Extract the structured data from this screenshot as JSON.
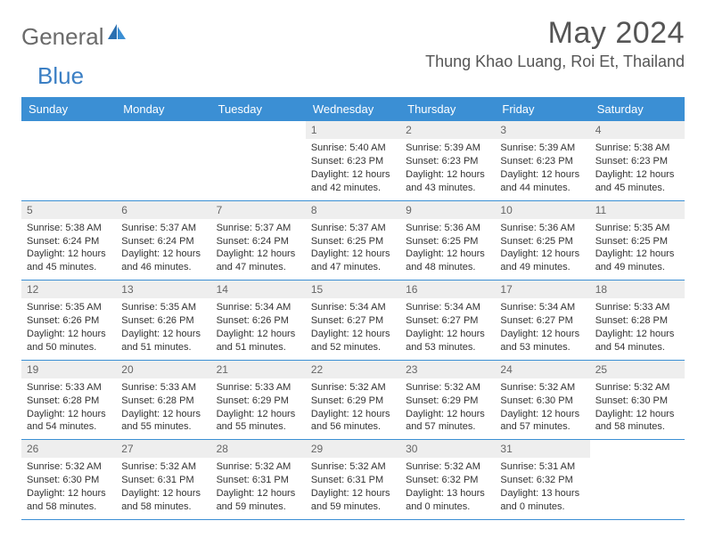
{
  "logo": {
    "general": "General",
    "blue": "Blue"
  },
  "title": "May 2024",
  "location": "Thung Khao Luang, Roi Et, Thailand",
  "colors": {
    "header_bg": "#3b8fd4",
    "header_text": "#ffffff",
    "daynum_bg": "#eeeeee",
    "daynum_text": "#666666",
    "body_text": "#333333",
    "title_text": "#555555",
    "logo_gray": "#6b6b6b",
    "logo_blue": "#3b7fc4",
    "row_border": "#3b8fd4",
    "page_bg": "#ffffff"
  },
  "typography": {
    "title_fontsize": 34,
    "location_fontsize": 18,
    "dayheader_fontsize": 13,
    "daynum_fontsize": 12,
    "body_fontsize": 11,
    "logo_fontsize": 26
  },
  "day_headers": [
    "Sunday",
    "Monday",
    "Tuesday",
    "Wednesday",
    "Thursday",
    "Friday",
    "Saturday"
  ],
  "weeks": [
    [
      {
        "blank": true
      },
      {
        "blank": true
      },
      {
        "blank": true
      },
      {
        "n": "1",
        "sunrise": "Sunrise: 5:40 AM",
        "sunset": "Sunset: 6:23 PM",
        "daylight": "Daylight: 12 hours and 42 minutes."
      },
      {
        "n": "2",
        "sunrise": "Sunrise: 5:39 AM",
        "sunset": "Sunset: 6:23 PM",
        "daylight": "Daylight: 12 hours and 43 minutes."
      },
      {
        "n": "3",
        "sunrise": "Sunrise: 5:39 AM",
        "sunset": "Sunset: 6:23 PM",
        "daylight": "Daylight: 12 hours and 44 minutes."
      },
      {
        "n": "4",
        "sunrise": "Sunrise: 5:38 AM",
        "sunset": "Sunset: 6:23 PM",
        "daylight": "Daylight: 12 hours and 45 minutes."
      }
    ],
    [
      {
        "n": "5",
        "sunrise": "Sunrise: 5:38 AM",
        "sunset": "Sunset: 6:24 PM",
        "daylight": "Daylight: 12 hours and 45 minutes."
      },
      {
        "n": "6",
        "sunrise": "Sunrise: 5:37 AM",
        "sunset": "Sunset: 6:24 PM",
        "daylight": "Daylight: 12 hours and 46 minutes."
      },
      {
        "n": "7",
        "sunrise": "Sunrise: 5:37 AM",
        "sunset": "Sunset: 6:24 PM",
        "daylight": "Daylight: 12 hours and 47 minutes."
      },
      {
        "n": "8",
        "sunrise": "Sunrise: 5:37 AM",
        "sunset": "Sunset: 6:25 PM",
        "daylight": "Daylight: 12 hours and 47 minutes."
      },
      {
        "n": "9",
        "sunrise": "Sunrise: 5:36 AM",
        "sunset": "Sunset: 6:25 PM",
        "daylight": "Daylight: 12 hours and 48 minutes."
      },
      {
        "n": "10",
        "sunrise": "Sunrise: 5:36 AM",
        "sunset": "Sunset: 6:25 PM",
        "daylight": "Daylight: 12 hours and 49 minutes."
      },
      {
        "n": "11",
        "sunrise": "Sunrise: 5:35 AM",
        "sunset": "Sunset: 6:25 PM",
        "daylight": "Daylight: 12 hours and 49 minutes."
      }
    ],
    [
      {
        "n": "12",
        "sunrise": "Sunrise: 5:35 AM",
        "sunset": "Sunset: 6:26 PM",
        "daylight": "Daylight: 12 hours and 50 minutes."
      },
      {
        "n": "13",
        "sunrise": "Sunrise: 5:35 AM",
        "sunset": "Sunset: 6:26 PM",
        "daylight": "Daylight: 12 hours and 51 minutes."
      },
      {
        "n": "14",
        "sunrise": "Sunrise: 5:34 AM",
        "sunset": "Sunset: 6:26 PM",
        "daylight": "Daylight: 12 hours and 51 minutes."
      },
      {
        "n": "15",
        "sunrise": "Sunrise: 5:34 AM",
        "sunset": "Sunset: 6:27 PM",
        "daylight": "Daylight: 12 hours and 52 minutes."
      },
      {
        "n": "16",
        "sunrise": "Sunrise: 5:34 AM",
        "sunset": "Sunset: 6:27 PM",
        "daylight": "Daylight: 12 hours and 53 minutes."
      },
      {
        "n": "17",
        "sunrise": "Sunrise: 5:34 AM",
        "sunset": "Sunset: 6:27 PM",
        "daylight": "Daylight: 12 hours and 53 minutes."
      },
      {
        "n": "18",
        "sunrise": "Sunrise: 5:33 AM",
        "sunset": "Sunset: 6:28 PM",
        "daylight": "Daylight: 12 hours and 54 minutes."
      }
    ],
    [
      {
        "n": "19",
        "sunrise": "Sunrise: 5:33 AM",
        "sunset": "Sunset: 6:28 PM",
        "daylight": "Daylight: 12 hours and 54 minutes."
      },
      {
        "n": "20",
        "sunrise": "Sunrise: 5:33 AM",
        "sunset": "Sunset: 6:28 PM",
        "daylight": "Daylight: 12 hours and 55 minutes."
      },
      {
        "n": "21",
        "sunrise": "Sunrise: 5:33 AM",
        "sunset": "Sunset: 6:29 PM",
        "daylight": "Daylight: 12 hours and 55 minutes."
      },
      {
        "n": "22",
        "sunrise": "Sunrise: 5:32 AM",
        "sunset": "Sunset: 6:29 PM",
        "daylight": "Daylight: 12 hours and 56 minutes."
      },
      {
        "n": "23",
        "sunrise": "Sunrise: 5:32 AM",
        "sunset": "Sunset: 6:29 PM",
        "daylight": "Daylight: 12 hours and 57 minutes."
      },
      {
        "n": "24",
        "sunrise": "Sunrise: 5:32 AM",
        "sunset": "Sunset: 6:30 PM",
        "daylight": "Daylight: 12 hours and 57 minutes."
      },
      {
        "n": "25",
        "sunrise": "Sunrise: 5:32 AM",
        "sunset": "Sunset: 6:30 PM",
        "daylight": "Daylight: 12 hours and 58 minutes."
      }
    ],
    [
      {
        "n": "26",
        "sunrise": "Sunrise: 5:32 AM",
        "sunset": "Sunset: 6:30 PM",
        "daylight": "Daylight: 12 hours and 58 minutes."
      },
      {
        "n": "27",
        "sunrise": "Sunrise: 5:32 AM",
        "sunset": "Sunset: 6:31 PM",
        "daylight": "Daylight: 12 hours and 58 minutes."
      },
      {
        "n": "28",
        "sunrise": "Sunrise: 5:32 AM",
        "sunset": "Sunset: 6:31 PM",
        "daylight": "Daylight: 12 hours and 59 minutes."
      },
      {
        "n": "29",
        "sunrise": "Sunrise: 5:32 AM",
        "sunset": "Sunset: 6:31 PM",
        "daylight": "Daylight: 12 hours and 59 minutes."
      },
      {
        "n": "30",
        "sunrise": "Sunrise: 5:32 AM",
        "sunset": "Sunset: 6:32 PM",
        "daylight": "Daylight: 13 hours and 0 minutes."
      },
      {
        "n": "31",
        "sunrise": "Sunrise: 5:31 AM",
        "sunset": "Sunset: 6:32 PM",
        "daylight": "Daylight: 13 hours and 0 minutes."
      },
      {
        "blank": true
      }
    ]
  ]
}
